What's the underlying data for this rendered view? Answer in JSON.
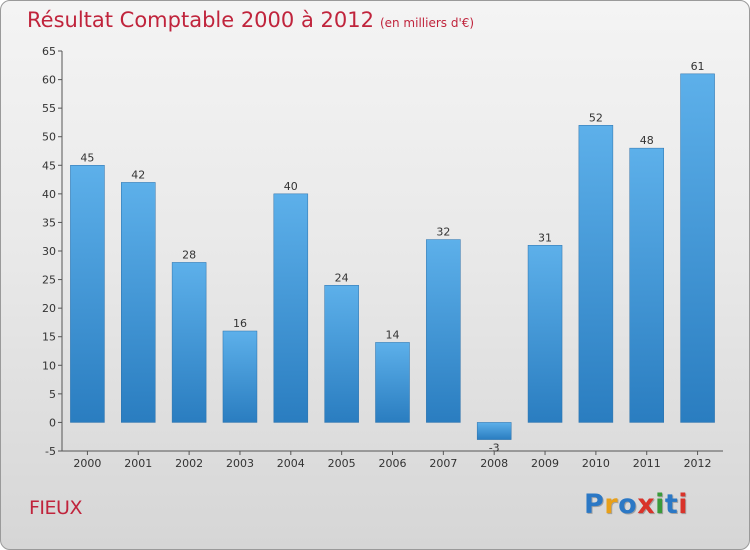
{
  "header": {
    "title": "Résultat Comptable 2000 à 2012",
    "unit": "(en milliers d'€)"
  },
  "commune": "FIEUX",
  "logo": {
    "text": "Proxiti",
    "letters": [
      {
        "ch": "P",
        "color": "#2b78c5"
      },
      {
        "ch": "r",
        "color": "#e8a019"
      },
      {
        "ch": "o",
        "color": "#2b78c5"
      },
      {
        "ch": "x",
        "color": "#d9332a"
      },
      {
        "ch": "i",
        "color": "#3a9a3a"
      },
      {
        "ch": "t",
        "color": "#2b78c5"
      },
      {
        "ch": "i",
        "color": "#d9332a"
      }
    ]
  },
  "colors": {
    "bar_top": "#5db0ea",
    "bar_bottom": "#2a7dc0",
    "title": "#c0243c"
  },
  "chart_data": {
    "type": "bar",
    "title": "Résultat Comptable 2000 à 2012",
    "subtitle": "(en milliers d'€)",
    "xlabel": "",
    "ylabel": "",
    "categories": [
      "2000",
      "2001",
      "2002",
      "2003",
      "2004",
      "2005",
      "2006",
      "2007",
      "2008",
      "2009",
      "2010",
      "2011",
      "2012"
    ],
    "values": [
      45,
      42,
      28,
      16,
      40,
      24,
      14,
      32,
      -3,
      31,
      52,
      48,
      61
    ],
    "ylim": [
      -5,
      65
    ],
    "yticks": [
      -5,
      0,
      5,
      10,
      15,
      20,
      25,
      30,
      35,
      40,
      45,
      50,
      55,
      60,
      65
    ],
    "grid": false,
    "legend": "none"
  }
}
